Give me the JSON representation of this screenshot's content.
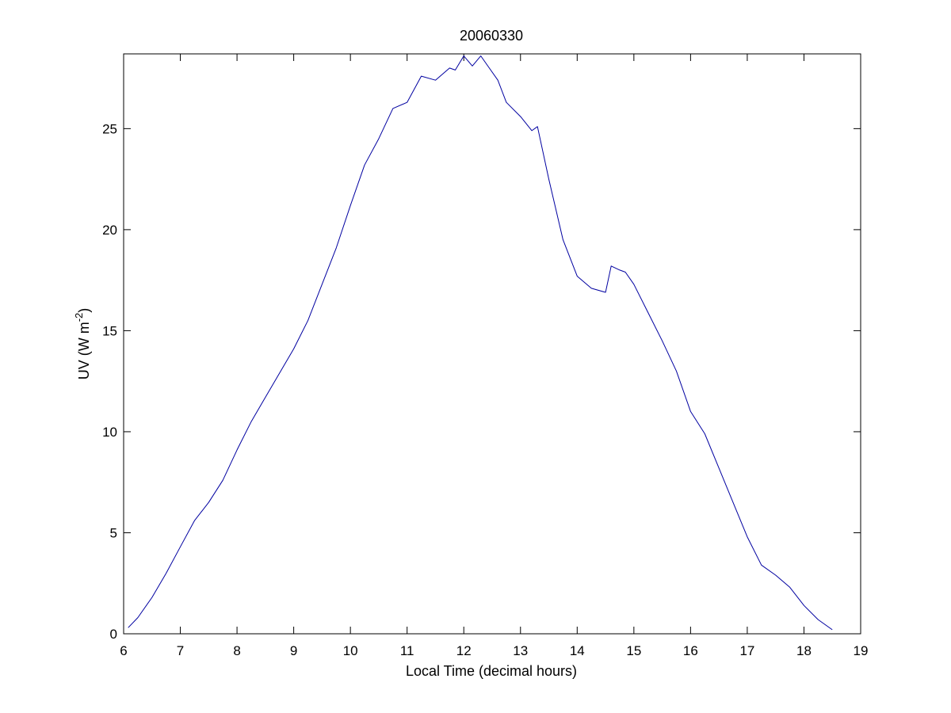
{
  "chart_data": {
    "type": "line",
    "title": "20060330",
    "xlabel": "Local Time (decimal hours)",
    "ylabel": "UV (W m",
    "ylabel_exponent": "-2",
    "ylabel_close": ")",
    "xlim": [
      6,
      19
    ],
    "ylim": [
      0,
      28.7
    ],
    "xticks": [
      6,
      7,
      8,
      9,
      10,
      11,
      12,
      13,
      14,
      15,
      16,
      17,
      18,
      19
    ],
    "yticks": [
      0,
      5,
      10,
      15,
      20,
      25
    ],
    "xtick_labels": [
      "6",
      "7",
      "8",
      "9",
      "10",
      "11",
      "12",
      "13",
      "14",
      "15",
      "16",
      "17",
      "18",
      "19"
    ],
    "ytick_labels": [
      "0",
      "5",
      "10",
      "15",
      "20",
      "25"
    ],
    "grid": false,
    "legend": "none",
    "series": [
      {
        "color": "#0000a0",
        "x": [
          6.08,
          6.25,
          6.5,
          6.75,
          7.0,
          7.25,
          7.5,
          7.75,
          8.0,
          8.25,
          8.5,
          8.75,
          9.0,
          9.25,
          9.5,
          9.75,
          10.0,
          10.25,
          10.5,
          10.75,
          11.0,
          11.25,
          11.5,
          11.75,
          11.85,
          12.0,
          12.15,
          12.3,
          12.45,
          12.6,
          12.75,
          13.0,
          13.2,
          13.3,
          13.5,
          13.75,
          14.0,
          14.25,
          14.5,
          14.6,
          14.75,
          14.85,
          15.0,
          15.25,
          15.5,
          15.75,
          16.0,
          16.25,
          16.5,
          16.75,
          17.0,
          17.25,
          17.5,
          17.75,
          18.0,
          18.25,
          18.5
        ],
        "values": [
          0.3,
          0.8,
          1.8,
          3.0,
          4.3,
          5.6,
          6.5,
          7.6,
          9.1,
          10.5,
          11.7,
          12.9,
          14.1,
          15.5,
          17.3,
          19.1,
          21.2,
          23.2,
          24.5,
          26.0,
          26.3,
          27.6,
          27.4,
          28.0,
          27.9,
          28.6,
          28.1,
          28.6,
          28.0,
          27.4,
          26.3,
          25.6,
          24.9,
          25.1,
          22.5,
          19.5,
          17.7,
          17.1,
          16.9,
          18.2,
          18.0,
          17.9,
          17.3,
          15.9,
          14.5,
          13.0,
          11.0,
          9.9,
          8.2,
          6.5,
          4.8,
          3.4,
          2.9,
          2.3,
          1.4,
          0.7,
          0.2
        ]
      }
    ]
  }
}
